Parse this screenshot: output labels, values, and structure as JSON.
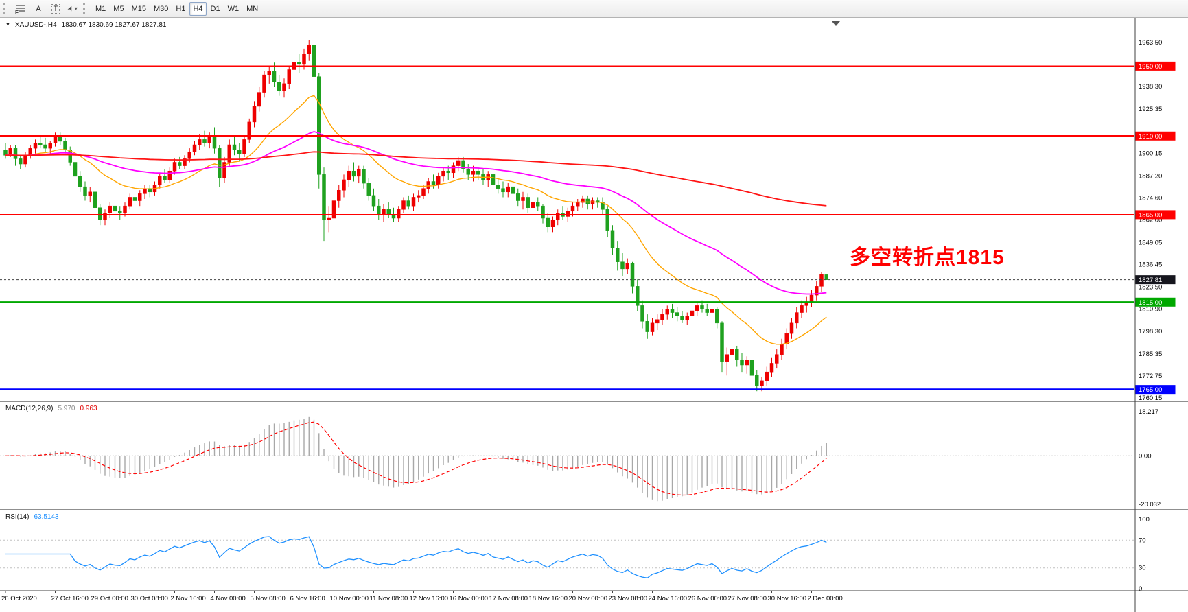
{
  "toolbar": {
    "indicators_label": "F",
    "text_tool": "A",
    "label_tool": "T",
    "timeframes": [
      "M1",
      "M5",
      "M15",
      "M30",
      "H1",
      "H4",
      "D1",
      "W1",
      "MN"
    ],
    "active": "H4"
  },
  "chart": {
    "symbol": "XAUUSD-,H4",
    "ohlc_header": "1830.67 1830.69 1827.67 1827.81",
    "annotation": {
      "text": "多空转折点1815",
      "color": "#FF0000"
    }
  },
  "indicators": {
    "macd": {
      "name": "MACD(12,26,9)",
      "value_main": "5.970",
      "value_signal": "0.963"
    },
    "rsi": {
      "name": "RSI(14)",
      "value": "63.5143"
    }
  },
  "chart_data": {
    "type": "candlestick",
    "symbol": "XAUUSD-",
    "timeframe": "H4",
    "current_ohlc": [
      1830.67,
      1830.69,
      1827.67,
      1827.81
    ],
    "current_price": 1827.81,
    "current_price_label": "1827.81",
    "price_range": [
      1760.15,
      1963.5
    ],
    "price_axis_labels": [
      "1963.50",
      "1938.30",
      "1925.35",
      "1900.15",
      "1887.20",
      "1874.60",
      "1862.00",
      "1849.05",
      "1836.45",
      "1823.50",
      "1810.90",
      "1798.30",
      "1785.35",
      "1772.75",
      "1760.15"
    ],
    "price_badges": [
      {
        "text": "1950.00",
        "price": 1950.0,
        "color": "#ff0000"
      },
      {
        "text": "1910.00",
        "price": 1910.0,
        "color": "#ff0000"
      },
      {
        "text": "1865.00",
        "price": 1865.0,
        "color": "#ff0000"
      },
      {
        "text": "1827.81",
        "price": 1827.81,
        "color": "#16161e"
      },
      {
        "text": "1815.00",
        "price": 1815.0,
        "color": "#00a800"
      },
      {
        "text": "1765.00",
        "price": 1765.0,
        "color": "#0000ff"
      }
    ],
    "hlines": [
      {
        "price": 1950.0,
        "color": "#ff0000",
        "w": 1.8
      },
      {
        "price": 1910.0,
        "color": "#ff0000",
        "w": 2.6
      },
      {
        "price": 1865.0,
        "color": "#ff0000",
        "w": 1.8
      },
      {
        "price": 1815.0,
        "color": "#00a800",
        "w": 2.2
      },
      {
        "price": 1765.0,
        "color": "#0000ff",
        "w": 2.8
      }
    ],
    "time_labels": [
      {
        "i": 0,
        "text": "26 Oct 2020"
      },
      {
        "i": 10,
        "text": "27 Oct 16:00"
      },
      {
        "i": 18,
        "text": "29 Oct 00:00"
      },
      {
        "i": 26,
        "text": "30 Oct 08:00"
      },
      {
        "i": 34,
        "text": "2 Nov 16:00"
      },
      {
        "i": 42,
        "text": "4 Nov 00:00"
      },
      {
        "i": 50,
        "text": "5 Nov 08:00"
      },
      {
        "i": 58,
        "text": "6 Nov 16:00"
      },
      {
        "i": 66,
        "text": "10 Nov 00:00"
      },
      {
        "i": 74,
        "text": "11 Nov 08:00"
      },
      {
        "i": 82,
        "text": "12 Nov 16:00"
      },
      {
        "i": 90,
        "text": "16 Nov 00:00"
      },
      {
        "i": 98,
        "text": "17 Nov 08:00"
      },
      {
        "i": 106,
        "text": "18 Nov 16:00"
      },
      {
        "i": 114,
        "text": "20 Nov 00:00"
      },
      {
        "i": 122,
        "text": "23 Nov 08:00"
      },
      {
        "i": 130,
        "text": "24 Nov 16:00"
      },
      {
        "i": 138,
        "text": "26 Nov 00:00"
      },
      {
        "i": 146,
        "text": "27 Nov 08:00"
      },
      {
        "i": 154,
        "text": "30 Nov 16:00"
      },
      {
        "i": 162,
        "text": "2 Dec 00:00"
      }
    ],
    "candle_colors": {
      "bull": "#ee0000",
      "bear": "#1fa11f"
    },
    "moving_averages": [
      {
        "name": "fast",
        "period": 21,
        "color": "#ffa500",
        "width": 1.4
      },
      {
        "name": "medium",
        "period": 60,
        "color": "#ff00ff",
        "width": 1.8
      },
      {
        "name": "slow",
        "period": 300,
        "color": "#ff1414",
        "width": 1.8
      }
    ],
    "macd": {
      "fast": 12,
      "slow": 26,
      "signal": 9,
      "scale_max": 18.217,
      "scale_min": -20.032,
      "axis_labels": [
        "18.217",
        "0.00",
        "-20.032"
      ],
      "hist_color": "#a8a8a8",
      "signal_color": "#ff0000"
    },
    "rsi": {
      "period": 14,
      "levels": [
        70,
        30
      ],
      "axis_labels": [
        "100",
        "70",
        "30",
        "0"
      ],
      "color": "#1e90ff"
    },
    "candles": [
      [
        1902,
        1906,
        1897,
        1899
      ],
      [
        1899,
        1905,
        1898,
        1903
      ],
      [
        1903,
        1905,
        1893,
        1897
      ],
      [
        1897,
        1899,
        1891,
        1894
      ],
      [
        1894,
        1901,
        1892,
        1899
      ],
      [
        1899,
        1905,
        1897,
        1903
      ],
      [
        1903,
        1908,
        1900,
        1906
      ],
      [
        1906,
        1910,
        1903,
        1905
      ],
      [
        1905,
        1909,
        1901,
        1903
      ],
      [
        1903,
        1907,
        1899,
        1906
      ],
      [
        1906,
        1912,
        1904,
        1910
      ],
      [
        1910,
        1912,
        1905,
        1907
      ],
      [
        1907,
        1909,
        1900,
        1902
      ],
      [
        1902,
        1904,
        1893,
        1895
      ],
      [
        1895,
        1897,
        1885,
        1887
      ],
      [
        1887,
        1890,
        1878,
        1881
      ],
      [
        1881,
        1884,
        1873,
        1876
      ],
      [
        1876,
        1881,
        1872,
        1878
      ],
      [
        1878,
        1879,
        1866,
        1869
      ],
      [
        1869,
        1871,
        1859,
        1862
      ],
      [
        1862,
        1868,
        1859,
        1866
      ],
      [
        1866,
        1872,
        1863,
        1870
      ],
      [
        1870,
        1873,
        1864,
        1867
      ],
      [
        1867,
        1870,
        1862,
        1866
      ],
      [
        1866,
        1872,
        1864,
        1870
      ],
      [
        1870,
        1877,
        1868,
        1875
      ],
      [
        1875,
        1880,
        1871,
        1873
      ],
      [
        1873,
        1879,
        1870,
        1877
      ],
      [
        1877,
        1882,
        1874,
        1880
      ],
      [
        1880,
        1882,
        1875,
        1878
      ],
      [
        1878,
        1884,
        1876,
        1882
      ],
      [
        1882,
        1889,
        1880,
        1887
      ],
      [
        1887,
        1891,
        1883,
        1885
      ],
      [
        1885,
        1892,
        1883,
        1890
      ],
      [
        1890,
        1897,
        1888,
        1895
      ],
      [
        1895,
        1898,
        1891,
        1893
      ],
      [
        1893,
        1899,
        1891,
        1897
      ],
      [
        1897,
        1903,
        1895,
        1901
      ],
      [
        1901,
        1907,
        1899,
        1905
      ],
      [
        1905,
        1911,
        1902,
        1908
      ],
      [
        1908,
        1913,
        1904,
        1906
      ],
      [
        1906,
        1912,
        1903,
        1910
      ],
      [
        1910,
        1915,
        1900,
        1903
      ],
      [
        1903,
        1905,
        1881,
        1886
      ],
      [
        1886,
        1898,
        1883,
        1895
      ],
      [
        1895,
        1908,
        1893,
        1905
      ],
      [
        1905,
        1910,
        1899,
        1902
      ],
      [
        1902,
        1906,
        1896,
        1900
      ],
      [
        1900,
        1910,
        1898,
        1908
      ],
      [
        1908,
        1920,
        1906,
        1918
      ],
      [
        1918,
        1930,
        1915,
        1927
      ],
      [
        1927,
        1938,
        1924,
        1935
      ],
      [
        1935,
        1947,
        1932,
        1945
      ],
      [
        1945,
        1950,
        1940,
        1947
      ],
      [
        1947,
        1952,
        1938,
        1941
      ],
      [
        1941,
        1945,
        1933,
        1936
      ],
      [
        1936,
        1943,
        1932,
        1940
      ],
      [
        1940,
        1950,
        1937,
        1948
      ],
      [
        1948,
        1955,
        1944,
        1952
      ],
      [
        1952,
        1957,
        1946,
        1951
      ],
      [
        1951,
        1960,
        1948,
        1957
      ],
      [
        1957,
        1965,
        1953,
        1962
      ],
      [
        1962,
        1964,
        1940,
        1944
      ],
      [
        1944,
        1946,
        1880,
        1888
      ],
      [
        1888,
        1892,
        1850,
        1862
      ],
      [
        1862,
        1870,
        1855,
        1863
      ],
      [
        1863,
        1876,
        1858,
        1873
      ],
      [
        1873,
        1882,
        1869,
        1879
      ],
      [
        1879,
        1888,
        1875,
        1885
      ],
      [
        1885,
        1893,
        1881,
        1890
      ],
      [
        1890,
        1895,
        1884,
        1887
      ],
      [
        1887,
        1893,
        1883,
        1891
      ],
      [
        1891,
        1893,
        1880,
        1883
      ],
      [
        1883,
        1886,
        1873,
        1876
      ],
      [
        1876,
        1880,
        1867,
        1870
      ],
      [
        1870,
        1874,
        1862,
        1865
      ],
      [
        1865,
        1871,
        1861,
        1868
      ],
      [
        1868,
        1872,
        1863,
        1865
      ],
      [
        1865,
        1869,
        1861,
        1863
      ],
      [
        1863,
        1870,
        1861,
        1868
      ],
      [
        1868,
        1875,
        1866,
        1873
      ],
      [
        1873,
        1876,
        1868,
        1870
      ],
      [
        1870,
        1877,
        1867,
        1875
      ],
      [
        1875,
        1879,
        1872,
        1876
      ],
      [
        1876,
        1882,
        1874,
        1880
      ],
      [
        1880,
        1886,
        1877,
        1884
      ],
      [
        1884,
        1888,
        1880,
        1882
      ],
      [
        1882,
        1889,
        1880,
        1887
      ],
      [
        1887,
        1892,
        1884,
        1890
      ],
      [
        1890,
        1893,
        1885,
        1889
      ],
      [
        1889,
        1895,
        1886,
        1893
      ],
      [
        1893,
        1898,
        1890,
        1896
      ],
      [
        1896,
        1898,
        1889,
        1891
      ],
      [
        1891,
        1894,
        1885,
        1888
      ],
      [
        1888,
        1893,
        1884,
        1890
      ],
      [
        1890,
        1892,
        1885,
        1888
      ],
      [
        1888,
        1891,
        1882,
        1885
      ],
      [
        1885,
        1890,
        1881,
        1888
      ],
      [
        1888,
        1889,
        1879,
        1882
      ],
      [
        1882,
        1886,
        1877,
        1880
      ],
      [
        1880,
        1884,
        1875,
        1878
      ],
      [
        1878,
        1883,
        1875,
        1881
      ],
      [
        1881,
        1884,
        1874,
        1877
      ],
      [
        1877,
        1880,
        1870,
        1873
      ],
      [
        1873,
        1878,
        1868,
        1875
      ],
      [
        1875,
        1877,
        1866,
        1869
      ],
      [
        1869,
        1874,
        1865,
        1872
      ],
      [
        1872,
        1875,
        1867,
        1870
      ],
      [
        1870,
        1871,
        1860,
        1863
      ],
      [
        1863,
        1866,
        1855,
        1858
      ],
      [
        1858,
        1864,
        1855,
        1862
      ],
      [
        1862,
        1868,
        1859,
        1866
      ],
      [
        1866,
        1870,
        1862,
        1864
      ],
      [
        1864,
        1869,
        1861,
        1867
      ],
      [
        1867,
        1872,
        1864,
        1870
      ],
      [
        1870,
        1874,
        1867,
        1872
      ],
      [
        1872,
        1876,
        1869,
        1874
      ],
      [
        1874,
        1876,
        1868,
        1871
      ],
      [
        1871,
        1875,
        1868,
        1873
      ],
      [
        1873,
        1875,
        1869,
        1872
      ],
      [
        1872,
        1875,
        1865,
        1868
      ],
      [
        1868,
        1870,
        1852,
        1856
      ],
      [
        1856,
        1859,
        1842,
        1846
      ],
      [
        1846,
        1850,
        1833,
        1838
      ],
      [
        1838,
        1843,
        1830,
        1834
      ],
      [
        1834,
        1840,
        1831,
        1837
      ],
      [
        1837,
        1838,
        1820,
        1824
      ],
      [
        1824,
        1828,
        1810,
        1813
      ],
      [
        1813,
        1816,
        1800,
        1804
      ],
      [
        1804,
        1808,
        1794,
        1798
      ],
      [
        1798,
        1806,
        1796,
        1803
      ],
      [
        1803,
        1808,
        1799,
        1805
      ],
      [
        1805,
        1811,
        1802,
        1808
      ],
      [
        1808,
        1813,
        1805,
        1811
      ],
      [
        1811,
        1814,
        1806,
        1809
      ],
      [
        1809,
        1812,
        1804,
        1807
      ],
      [
        1807,
        1810,
        1803,
        1805
      ],
      [
        1805,
        1809,
        1802,
        1807
      ],
      [
        1807,
        1812,
        1804,
        1810
      ],
      [
        1810,
        1815,
        1807,
        1813
      ],
      [
        1813,
        1816,
        1809,
        1811
      ],
      [
        1811,
        1814,
        1807,
        1809
      ],
      [
        1809,
        1813,
        1806,
        1811
      ],
      [
        1811,
        1812,
        1800,
        1803
      ],
      [
        1803,
        1804,
        1775,
        1781
      ],
      [
        1781,
        1789,
        1773,
        1785
      ],
      [
        1785,
        1791,
        1780,
        1788
      ],
      [
        1788,
        1790,
        1778,
        1782
      ],
      [
        1782,
        1786,
        1775,
        1779
      ],
      [
        1779,
        1784,
        1774,
        1782
      ],
      [
        1782,
        1783,
        1770,
        1773
      ],
      [
        1773,
        1776,
        1764,
        1767
      ],
      [
        1767,
        1772,
        1764,
        1770
      ],
      [
        1770,
        1778,
        1767,
        1775
      ],
      [
        1775,
        1783,
        1772,
        1780
      ],
      [
        1780,
        1788,
        1777,
        1785
      ],
      [
        1785,
        1794,
        1782,
        1791
      ],
      [
        1791,
        1800,
        1788,
        1797
      ],
      [
        1797,
        1806,
        1794,
        1803
      ],
      [
        1803,
        1812,
        1800,
        1809
      ],
      [
        1809,
        1816,
        1806,
        1813
      ],
      [
        1813,
        1818,
        1809,
        1815
      ],
      [
        1815,
        1822,
        1812,
        1819
      ],
      [
        1819,
        1827,
        1816,
        1824
      ],
      [
        1824,
        1832,
        1821,
        1830.7
      ],
      [
        1830.67,
        1830.69,
        1827.67,
        1827.81
      ]
    ]
  }
}
